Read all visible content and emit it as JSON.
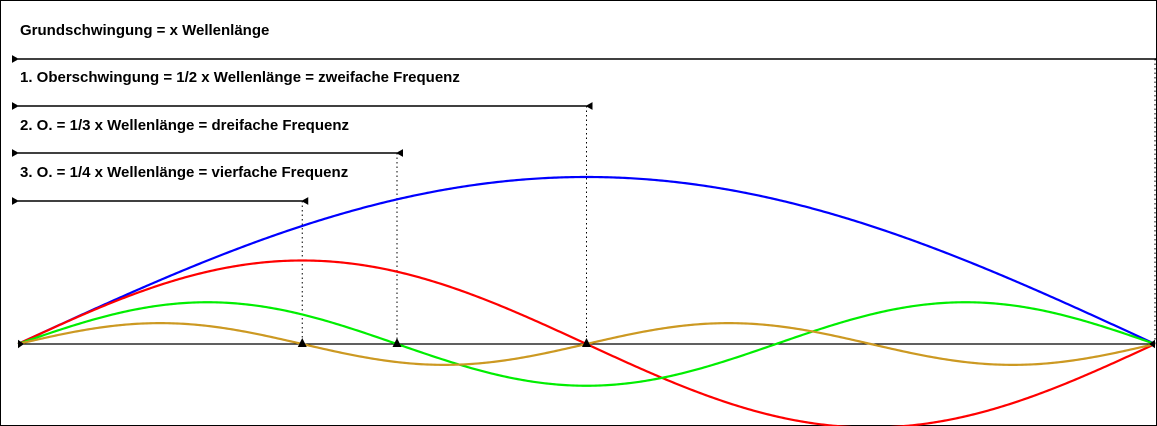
{
  "diagram": {
    "labels": {
      "fundamental": "Grundschwingung = x Wellenlänge",
      "harmonic1": "1. Oberschwingung = 1/2 x Wellenlänge = zweifache Frequenz",
      "harmonic2": "2. O. = 1/3 x Wellenlänge = dreifache Frequenz",
      "harmonic3": "3. O. = 1/4 x Wellenlänge = vierfache Frequenz"
    },
    "waves": [
      {
        "id": "fundamental",
        "harmonic": 1,
        "amplitude": 1.0,
        "color": "#0000ff"
      },
      {
        "id": "harmonic1",
        "harmonic": 2,
        "amplitude": 0.5,
        "color": "#ff0000"
      },
      {
        "id": "harmonic2",
        "harmonic": 3,
        "amplitude": 0.25,
        "color": "#00ee00"
      },
      {
        "id": "harmonic3",
        "harmonic": 4,
        "amplitude": 0.125,
        "color": "#cc9922"
      }
    ],
    "axis_color": "#000000"
  }
}
